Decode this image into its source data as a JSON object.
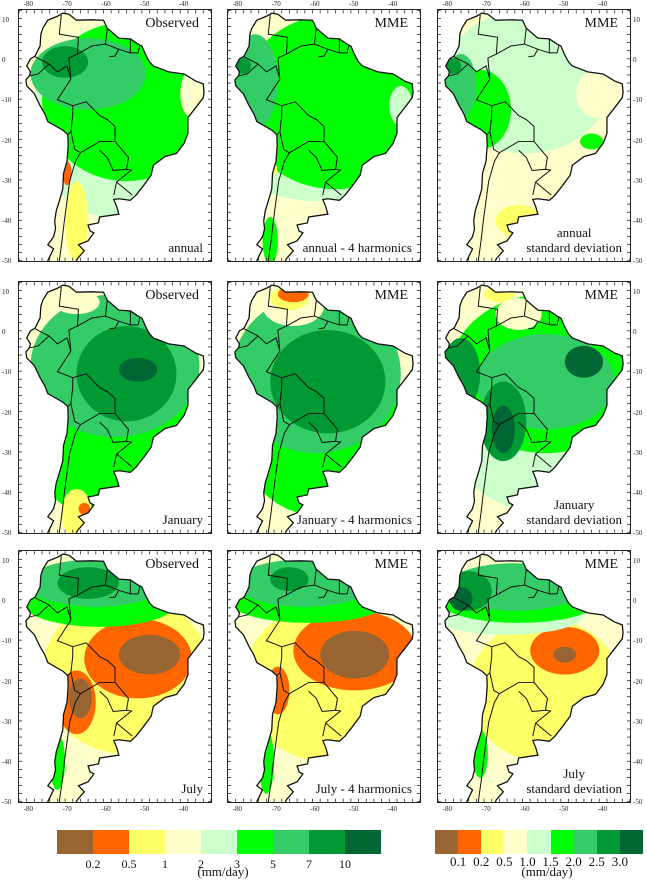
{
  "figure": {
    "variable_unit": "(mm/day)",
    "lon_ticks": [
      "-80",
      "-70",
      "-60",
      "-50",
      "-40"
    ],
    "lat_ticks": [
      "10",
      "0",
      "-10",
      "-20",
      "-30",
      "-40",
      "-50"
    ],
    "panels": [
      {
        "id": "annual-observed",
        "title": "Observed",
        "label_lines": [
          "annual"
        ],
        "scale": "mean",
        "pattern": "annual_obs"
      },
      {
        "id": "annual-mme",
        "title": "MME",
        "label_lines": [
          "annual - 4 harmonics"
        ],
        "scale": "mean",
        "pattern": "annual_mme"
      },
      {
        "id": "annual-sd",
        "title": "MME",
        "label_lines": [
          "annual",
          "standard deviation"
        ],
        "scale": "sd",
        "pattern": "annual_sd"
      },
      {
        "id": "january-observed",
        "title": "Observed",
        "label_lines": [
          "January"
        ],
        "scale": "mean",
        "pattern": "jan_obs"
      },
      {
        "id": "january-mme",
        "title": "MME",
        "label_lines": [
          "January - 4 harmonics"
        ],
        "scale": "mean",
        "pattern": "jan_mme"
      },
      {
        "id": "january-sd",
        "title": "MME",
        "label_lines": [
          "January",
          "standard deviation"
        ],
        "scale": "sd",
        "pattern": "jan_sd"
      },
      {
        "id": "july-observed",
        "title": "Observed",
        "label_lines": [
          "July"
        ],
        "scale": "mean",
        "pattern": "jul_obs"
      },
      {
        "id": "july-mme",
        "title": "MME",
        "label_lines": [
          "July - 4 harmonics"
        ],
        "scale": "mean",
        "pattern": "jul_mme"
      },
      {
        "id": "july-sd",
        "title": "MME",
        "label_lines": [
          "July",
          "standard deviation"
        ],
        "scale": "sd",
        "pattern": "jul_sd"
      }
    ],
    "colors": [
      "#996633",
      "#ff6600",
      "#ffff66",
      "#ffffcc",
      "#ccffcc",
      "#00ff00",
      "#33cc66",
      "#009933",
      "#006633"
    ],
    "colorbars": [
      {
        "id": "mean-colorbar",
        "labels": [
          "0.2",
          "0.5",
          "1",
          "2",
          "3",
          "5",
          "7",
          "10"
        ],
        "unit": "(mm/day)"
      },
      {
        "id": "sd-colorbar",
        "labels": [
          "0.1",
          "0.2",
          "0.5",
          "1.0",
          "1.5",
          "2.0",
          "2.5",
          "3.0"
        ],
        "unit": "(mm/day)"
      }
    ]
  }
}
